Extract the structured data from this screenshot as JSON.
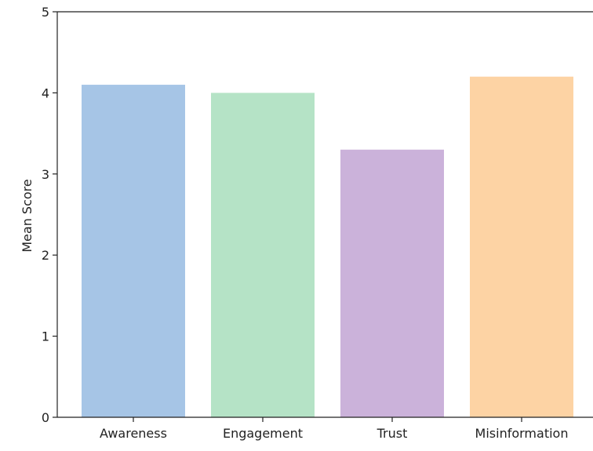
{
  "chart_data": {
    "type": "bar",
    "title": "",
    "xlabel": "",
    "ylabel": "Mean Score",
    "categories": [
      "Awareness",
      "Engagement",
      "Trust",
      "Misinformation"
    ],
    "values": [
      4.1,
      4.0,
      3.3,
      4.2
    ],
    "colors": [
      "#a6c5e6",
      "#b5e3c6",
      "#cbb2da",
      "#fdd3a4"
    ],
    "ylim": [
      0,
      5
    ],
    "yticks": [
      0,
      1,
      2,
      3,
      4,
      5
    ],
    "grid": false
  }
}
